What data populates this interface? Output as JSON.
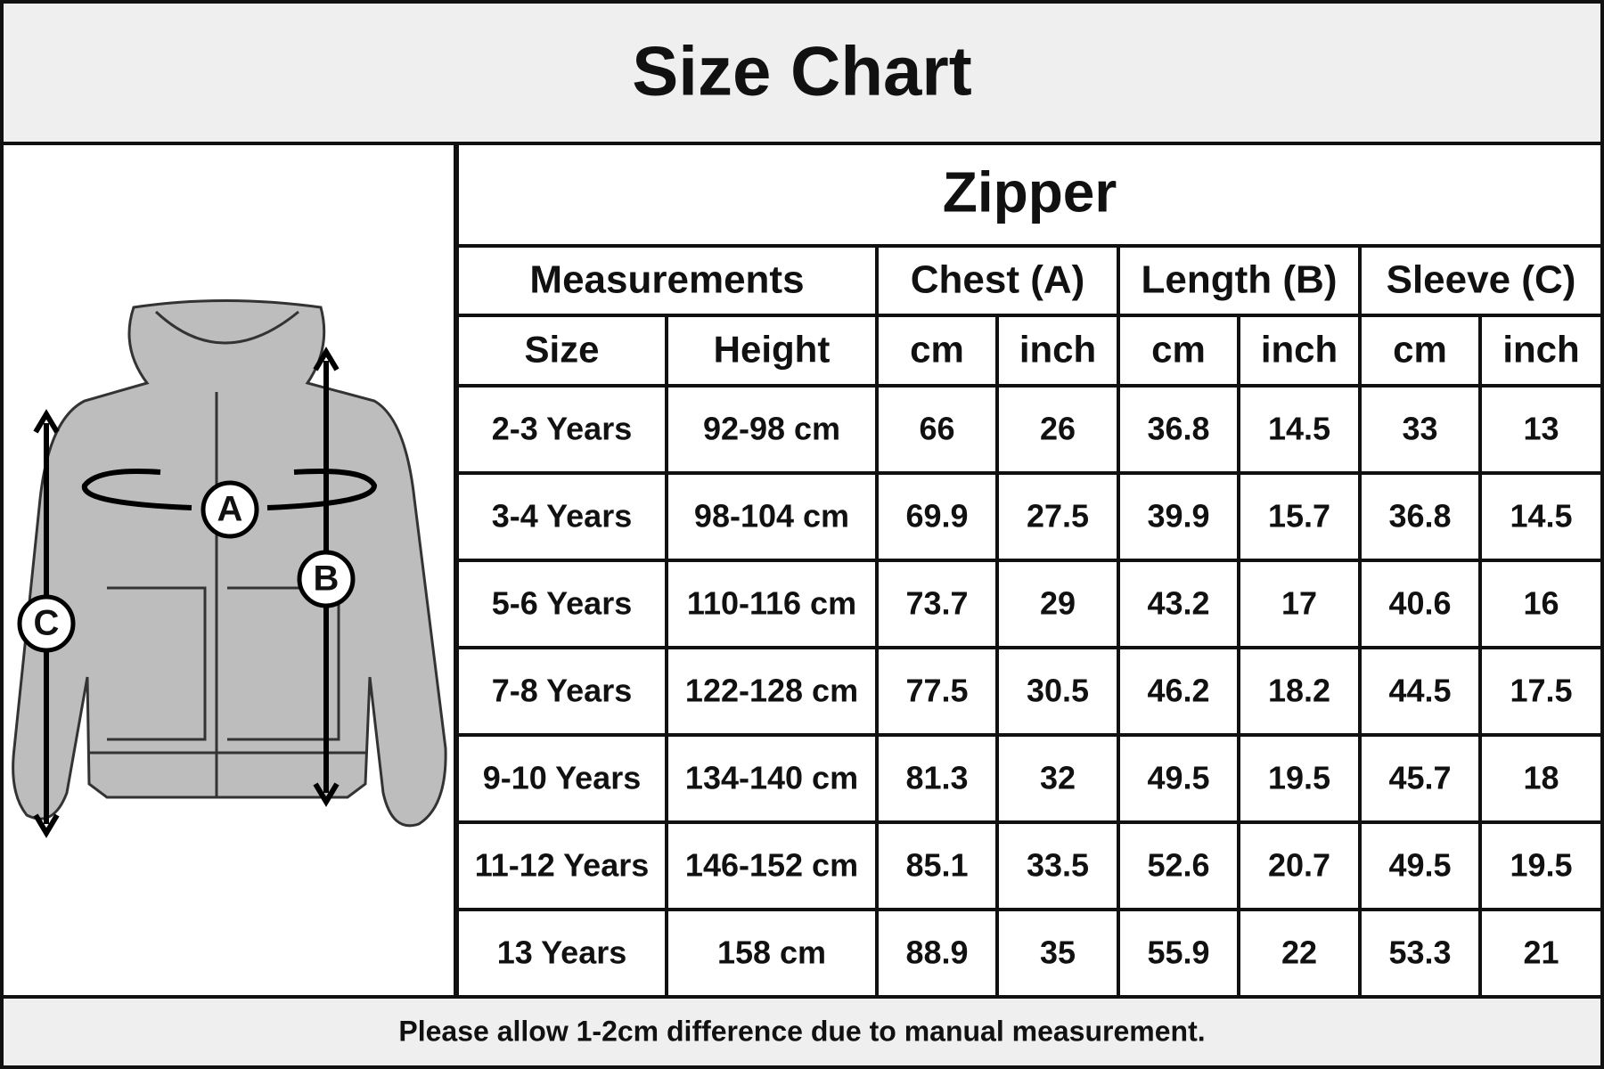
{
  "header": {
    "title": "Size Chart"
  },
  "diagram": {
    "labels": [
      "A",
      "B",
      "C"
    ]
  },
  "table": {
    "title": "Zipper",
    "group_headers": [
      "Measurements",
      "Chest (A)",
      "Length (B)",
      "Sleeve (C)"
    ],
    "column_headers": [
      "Size",
      "Height",
      "cm",
      "inch",
      "cm",
      "inch",
      "cm",
      "inch"
    ],
    "rows": [
      [
        "2-3 Years",
        "92-98 cm",
        66,
        26,
        36.8,
        14.5,
        33,
        13
      ],
      [
        "3-4 Years",
        "98-104 cm",
        69.9,
        27.5,
        39.9,
        15.7,
        36.8,
        14.5
      ],
      [
        "5-6 Years",
        "110-116 cm",
        73.7,
        29,
        43.2,
        17,
        40.6,
        16
      ],
      [
        "7-8 Years",
        "122-128 cm",
        77.5,
        30.5,
        46.2,
        18.2,
        44.5,
        17.5
      ],
      [
        "9-10 Years",
        "134-140 cm",
        81.3,
        32,
        49.5,
        19.5,
        45.7,
        18
      ],
      [
        "11-12 Years",
        "146-152 cm",
        85.1,
        33.5,
        52.6,
        20.7,
        49.5,
        19.5
      ],
      [
        "13 Years",
        "158 cm",
        88.9,
        35,
        55.9,
        22,
        53.3,
        21
      ]
    ]
  },
  "footer": {
    "note": "Please allow 1-2cm difference due to manual measurement."
  }
}
